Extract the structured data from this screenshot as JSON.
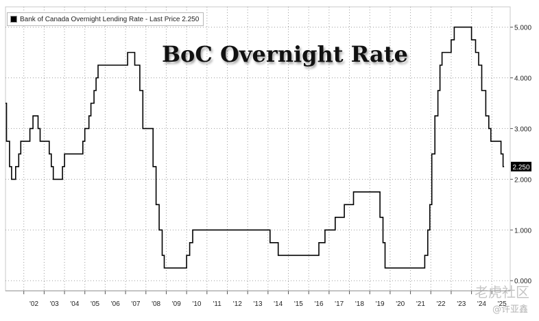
{
  "legend": {
    "label": "Bank of Canada Overnight Lending Rate - Last Price 2.250"
  },
  "watermark": {
    "line1": "老虎社区",
    "line2": "@许亚鑫"
  },
  "chart_data": {
    "type": "line",
    "title": "BoC Overnight Rate",
    "xlabel": "",
    "ylabel": "",
    "x_ticks": [
      "'02",
      "'03",
      "'04",
      "'05",
      "'06",
      "'07",
      "'08",
      "'09",
      "'10",
      "'11",
      "'12",
      "'13",
      "'14",
      "'15",
      "'16",
      "'17",
      "'18",
      "'19",
      "'20",
      "'21",
      "'22",
      "'23",
      "'24",
      "'25"
    ],
    "y_ticks": [
      "0.000",
      "1.000",
      "2.000",
      "3.000",
      "4.000",
      "5.000"
    ],
    "xlim": [
      2001.1,
      2025.9
    ],
    "ylim": [
      -0.2,
      5.4
    ],
    "grid": true,
    "legend_position": "top-left",
    "last_price_label": "2.250",
    "series": [
      {
        "name": "Bank of Canada Overnight Lending Rate",
        "color": "#000000",
        "step": true,
        "points": [
          [
            2001.1,
            3.5
          ],
          [
            2001.15,
            2.75
          ],
          [
            2001.3,
            2.25
          ],
          [
            2001.4,
            2.0
          ],
          [
            2001.6,
            2.25
          ],
          [
            2001.75,
            2.5
          ],
          [
            2001.85,
            2.75
          ],
          [
            2002.3,
            3.0
          ],
          [
            2002.45,
            3.25
          ],
          [
            2002.7,
            3.0
          ],
          [
            2002.8,
            2.75
          ],
          [
            2003.25,
            2.5
          ],
          [
            2003.35,
            2.25
          ],
          [
            2003.45,
            2.0
          ],
          [
            2003.9,
            2.25
          ],
          [
            2004.0,
            2.5
          ],
          [
            2004.9,
            2.75
          ],
          [
            2005.0,
            3.0
          ],
          [
            2005.2,
            3.25
          ],
          [
            2005.3,
            3.5
          ],
          [
            2005.45,
            3.75
          ],
          [
            2005.55,
            4.0
          ],
          [
            2005.65,
            4.25
          ],
          [
            2007.1,
            4.5
          ],
          [
            2007.45,
            4.25
          ],
          [
            2007.7,
            3.75
          ],
          [
            2007.85,
            3.0
          ],
          [
            2008.35,
            2.25
          ],
          [
            2008.5,
            1.5
          ],
          [
            2008.65,
            1.0
          ],
          [
            2008.8,
            0.5
          ],
          [
            2008.9,
            0.25
          ],
          [
            2010.0,
            0.5
          ],
          [
            2010.15,
            0.75
          ],
          [
            2010.3,
            1.0
          ],
          [
            2014.1,
            0.75
          ],
          [
            2014.5,
            0.5
          ],
          [
            2016.5,
            0.75
          ],
          [
            2016.8,
            1.0
          ],
          [
            2017.3,
            1.25
          ],
          [
            2017.75,
            1.5
          ],
          [
            2018.2,
            1.75
          ],
          [
            2019.5,
            1.25
          ],
          [
            2019.65,
            0.75
          ],
          [
            2019.75,
            0.25
          ],
          [
            2021.7,
            0.5
          ],
          [
            2021.85,
            1.0
          ],
          [
            2021.95,
            1.5
          ],
          [
            2022.05,
            2.5
          ],
          [
            2022.2,
            3.25
          ],
          [
            2022.35,
            3.75
          ],
          [
            2022.45,
            4.25
          ],
          [
            2022.55,
            4.5
          ],
          [
            2023.0,
            4.75
          ],
          [
            2023.15,
            5.0
          ],
          [
            2024.0,
            4.75
          ],
          [
            2024.2,
            4.5
          ],
          [
            2024.35,
            4.25
          ],
          [
            2024.5,
            3.75
          ],
          [
            2024.7,
            3.25
          ],
          [
            2024.85,
            3.0
          ],
          [
            2024.95,
            2.75
          ],
          [
            2025.45,
            2.5
          ],
          [
            2025.55,
            2.25
          ],
          [
            2025.6,
            2.25
          ]
        ]
      }
    ]
  }
}
